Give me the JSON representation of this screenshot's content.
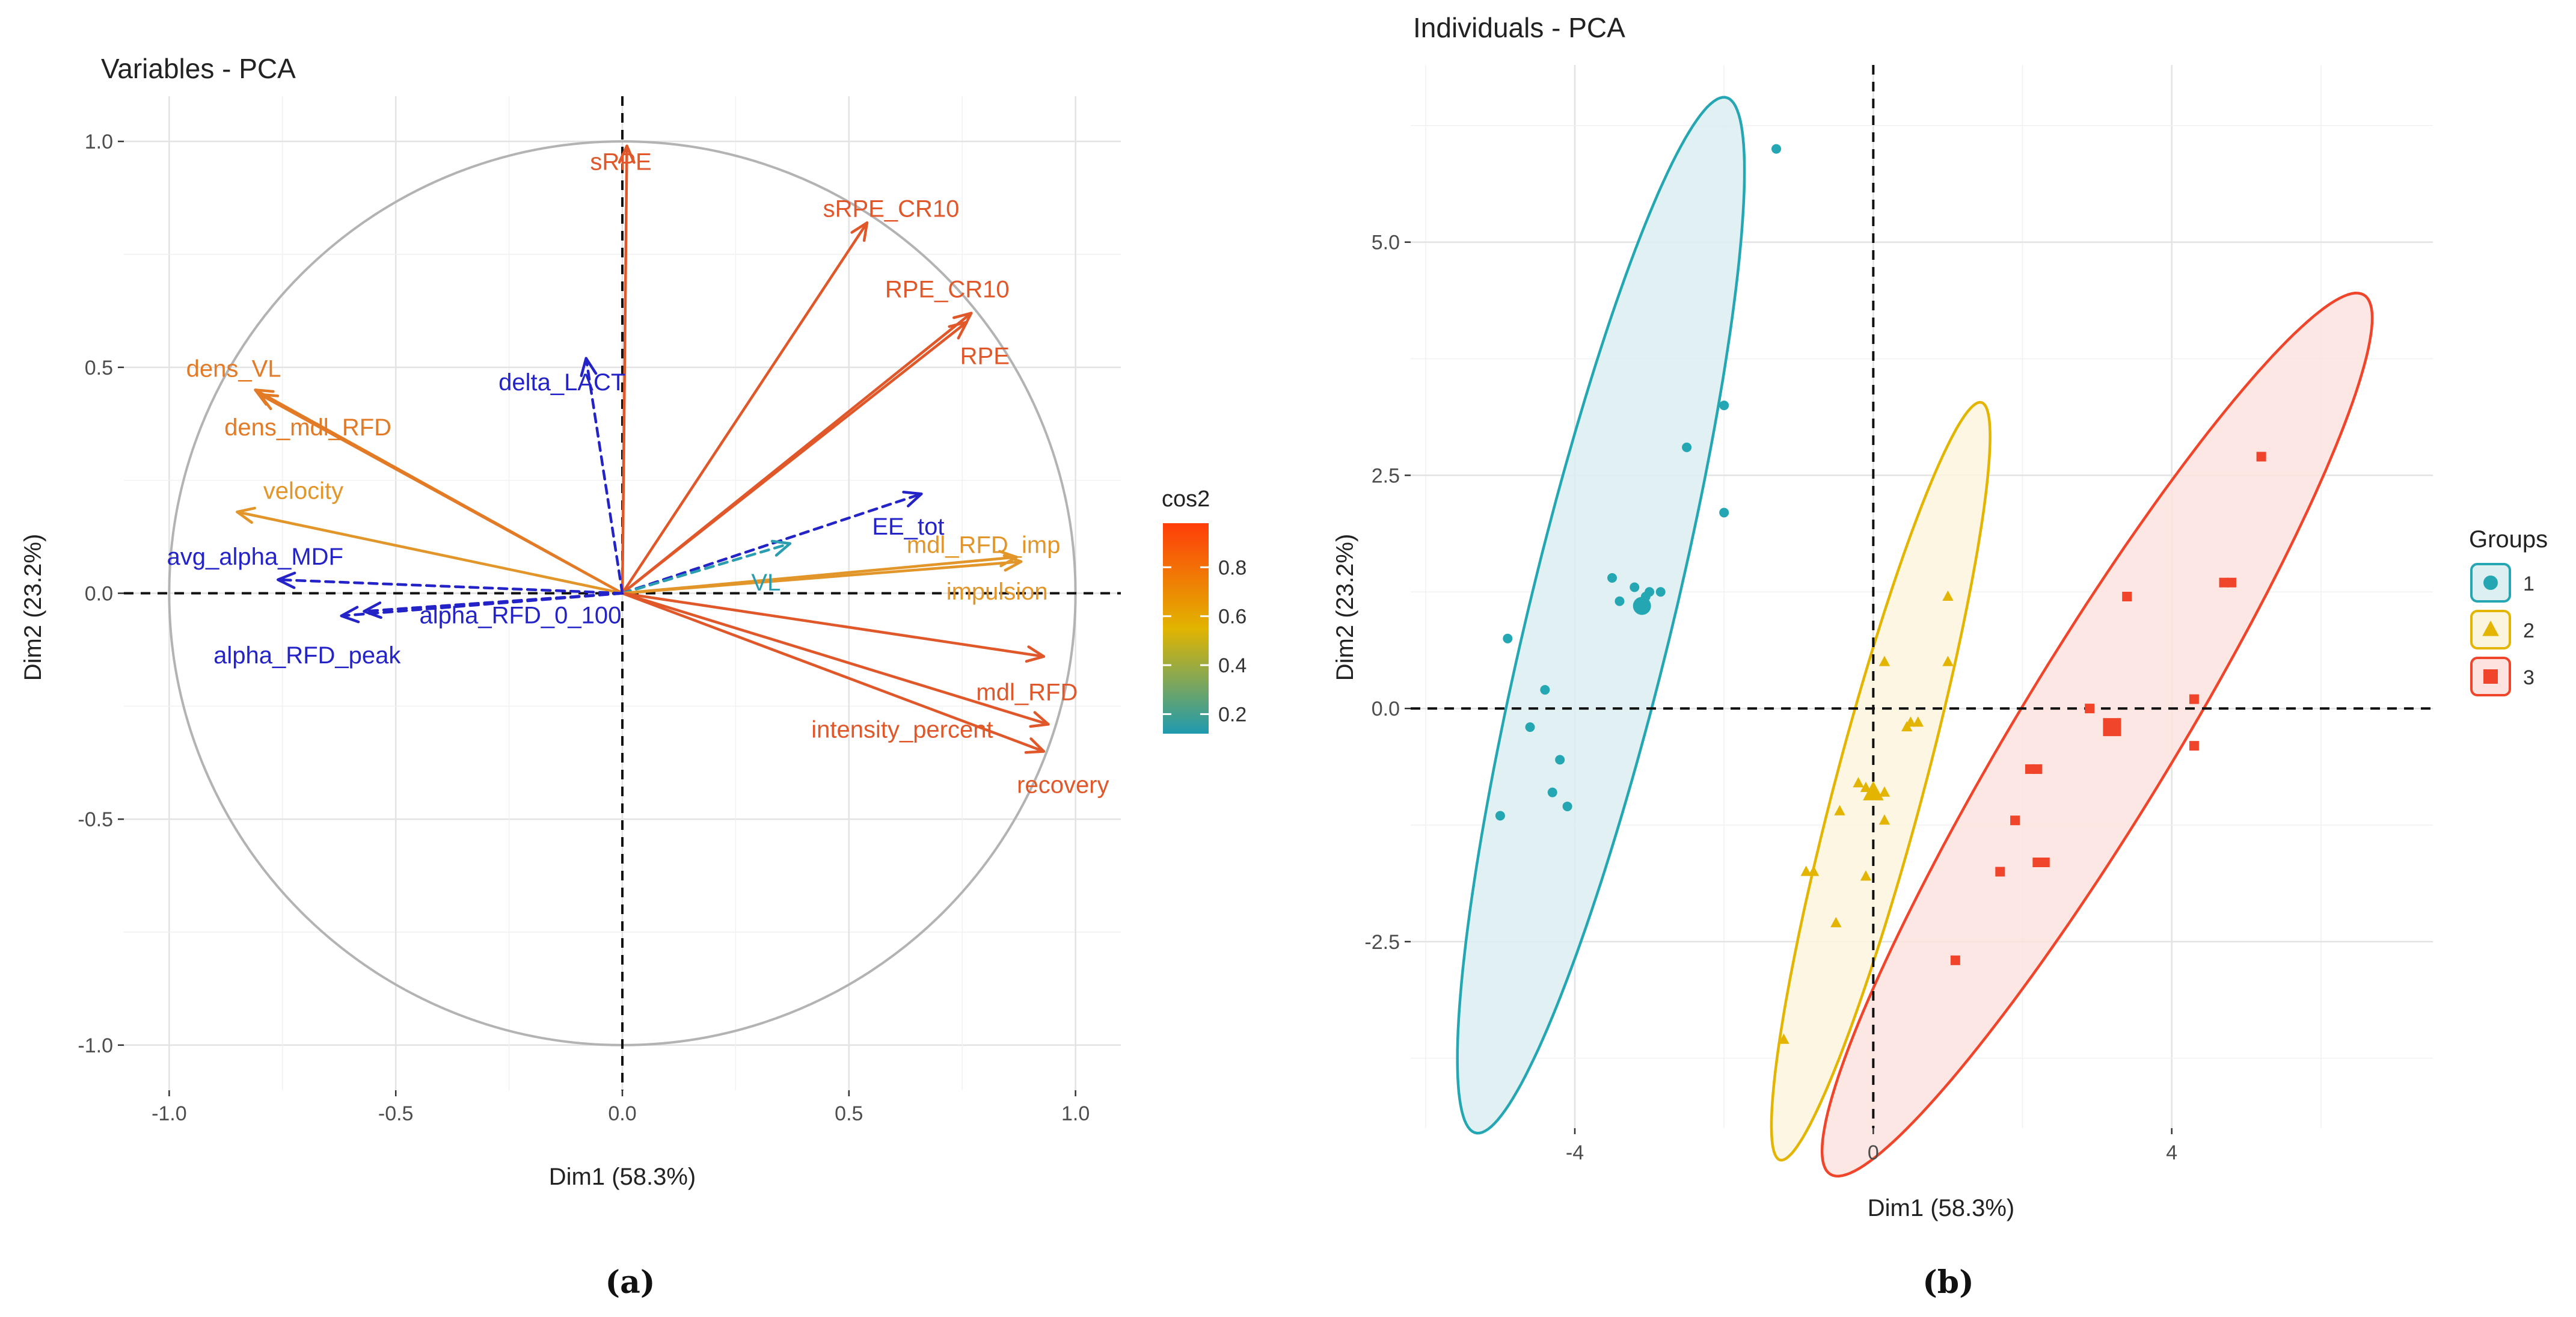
{
  "chart_data": [
    {
      "type": "pca-variables",
      "title": "Variables - PCA",
      "xlabel": "Dim1 (58.3%)",
      "ylabel": "Dim2 (23.2%)",
      "xlim": [
        -1.1,
        1.1
      ],
      "ylim": [
        -1.1,
        1.1
      ],
      "xticks": [
        -1.0,
        -0.5,
        0.0,
        0.5,
        1.0
      ],
      "yticks": [
        -1.0,
        -0.5,
        0.0,
        0.5,
        1.0
      ],
      "xtick_labels": [
        "-1.0",
        "-0.5",
        "0.0",
        "0.5",
        "1.0"
      ],
      "ytick_labels": [
        "-1.0",
        "-0.5",
        "0.0",
        "0.5",
        "1.0"
      ],
      "grid": true,
      "correlation_circle": true,
      "caption": "(a)",
      "legend": {
        "title": "cos2",
        "placement": "right",
        "ticks": [
          0.2,
          0.4,
          0.6,
          0.8
        ],
        "tick_labels": [
          "0.2",
          "0.4",
          "0.6",
          "0.8"
        ],
        "range": [
          0.12,
          0.98
        ],
        "colors": [
          "#1F9AAF",
          "#E2B400",
          "#FF3D0A"
        ]
      },
      "variables": [
        {
          "name": "sRPE",
          "x": 0.01,
          "y": 0.99,
          "cos2": 0.98,
          "color": "#E0582A",
          "style": "solid"
        },
        {
          "name": "sRPE_CR10",
          "x": 0.54,
          "y": 0.82,
          "cos2": 0.96,
          "color": "#E0582A",
          "style": "solid"
        },
        {
          "name": "RPE_CR10",
          "x": 0.77,
          "y": 0.62,
          "cos2": 0.96,
          "color": "#E0582A",
          "style": "solid"
        },
        {
          "name": "RPE",
          "x": 0.76,
          "y": 0.6,
          "cos2": 0.95,
          "color": "#E0582A",
          "style": "solid"
        },
        {
          "name": "dens_VL",
          "x": -0.81,
          "y": 0.45,
          "cos2": 0.86,
          "color": "#E37A26",
          "style": "solid"
        },
        {
          "name": "dens_mdl_RFD",
          "x": -0.8,
          "y": 0.44,
          "cos2": 0.84,
          "color": "#E37A26",
          "style": "solid"
        },
        {
          "name": "velocity",
          "x": -0.85,
          "y": 0.18,
          "cos2": 0.75,
          "color": "#E2962A",
          "style": "solid"
        },
        {
          "name": "delta_LACT",
          "x": -0.08,
          "y": 0.52,
          "cos2": 0.28,
          "color": "#2323C8",
          "style": "dashed"
        },
        {
          "name": "EE_tot",
          "x": 0.66,
          "y": 0.22,
          "cos2": 0.48,
          "color": "#2323C8",
          "style": "dashed"
        },
        {
          "name": "VL",
          "x": 0.37,
          "y": 0.11,
          "cos2": 0.15,
          "color": "#2A9DB0",
          "style": "dashed"
        },
        {
          "name": "mdl_RFD_imp",
          "x": 0.87,
          "y": 0.08,
          "cos2": 0.77,
          "color": "#E2962A",
          "style": "solid"
        },
        {
          "name": "impulsion",
          "x": 0.88,
          "y": 0.07,
          "cos2": 0.78,
          "color": "#E2962A",
          "style": "solid"
        },
        {
          "name": "mdl_RFD",
          "x": 0.93,
          "y": -0.14,
          "cos2": 0.88,
          "color": "#E0582A",
          "style": "solid"
        },
        {
          "name": "intensity_percent",
          "x": 0.94,
          "y": -0.29,
          "cos2": 0.97,
          "color": "#E0582A",
          "style": "solid"
        },
        {
          "name": "recovery",
          "x": 0.93,
          "y": -0.35,
          "cos2": 0.98,
          "color": "#E0582A",
          "style": "solid"
        },
        {
          "name": "avg_alpha_MDF",
          "x": -0.76,
          "y": 0.03,
          "cos2": 0.58,
          "color": "#2323C8",
          "style": "dashed"
        },
        {
          "name": "alpha_RFD_0_100",
          "x": -0.57,
          "y": -0.04,
          "cos2": 0.32,
          "color": "#2323C8",
          "style": "dashed"
        },
        {
          "name": "alpha_RFD_peak",
          "x": -0.62,
          "y": -0.05,
          "cos2": 0.38,
          "color": "#2323C8",
          "style": "dashed"
        }
      ],
      "variable_labels": [
        "sRPE",
        "sRPE_CR10",
        "RPE_CR10",
        "RPE",
        "dens_VL",
        "dens_mdl_RFD",
        "velocity",
        "delta_LACT",
        "EE_tot",
        "VL",
        "mdl_RFD_imp",
        "impulsion",
        "mdl_RFD",
        "intensity_percent",
        "recovery",
        "avg_alpha_MDF",
        "alpha_RFD_0_100",
        "alpha_RFD_peak"
      ]
    },
    {
      "type": "pca-individuals",
      "title": "Individuals - PCA",
      "xlabel": "Dim1 (58.3%)",
      "ylabel": "Dim2 (23.2%)",
      "xlim": [
        -6.2,
        7.5
      ],
      "ylim": [
        -4.5,
        6.9
      ],
      "xticks": [
        -4,
        0,
        4
      ],
      "yticks": [
        -2.5,
        0.0,
        2.5,
        5.0
      ],
      "xtick_labels": [
        "-4",
        "0",
        "4"
      ],
      "ytick_labels": [
        "-2.5",
        "0.0",
        "2.5",
        "5.0"
      ],
      "grid": true,
      "caption": "(b)",
      "legend": {
        "title": "Groups",
        "placement": "right",
        "entries": [
          {
            "label": "1",
            "shape": "circle",
            "color": "#24A6B3"
          },
          {
            "label": "2",
            "shape": "triangle",
            "color": "#E3B400"
          },
          {
            "label": "3",
            "shape": "square",
            "color": "#F0452A"
          }
        ]
      },
      "groups": [
        {
          "label": "1",
          "shape": "circle",
          "color": "#24A6B3",
          "fill": "#DCEFF1",
          "centroid": [
            -3.1,
            1.1
          ],
          "ellipse": {
            "center": [
              -3.65,
              1.0
            ],
            "semi_major": 5.8,
            "semi_minor": 0.95,
            "angle_deg": 73
          },
          "points": [
            [
              -1.3,
              6.0
            ],
            [
              -2.0,
              3.25
            ],
            [
              -2.5,
              2.8
            ],
            [
              -2.0,
              2.1
            ],
            [
              -3.5,
              1.4
            ],
            [
              -3.0,
              1.25
            ],
            [
              -2.85,
              1.25
            ],
            [
              -3.2,
              1.3
            ],
            [
              -3.05,
              1.2
            ],
            [
              -3.4,
              1.15
            ],
            [
              -4.9,
              0.75
            ],
            [
              -4.4,
              0.2
            ],
            [
              -4.6,
              -0.2
            ],
            [
              -4.2,
              -0.55
            ],
            [
              -4.3,
              -0.9
            ],
            [
              -4.1,
              -1.05
            ],
            [
              -5.0,
              -1.15
            ]
          ]
        },
        {
          "label": "2",
          "shape": "triangle",
          "color": "#E3B400",
          "fill": "#FCF5DE",
          "centroid": [
            0.0,
            -0.9
          ],
          "ellipse": {
            "center": [
              0.1,
              -0.78
            ],
            "semi_major": 4.28,
            "semi_minor": 0.58,
            "angle_deg": 71.5
          },
          "points": [
            [
              1.0,
              1.2
            ],
            [
              1.0,
              0.5
            ],
            [
              0.15,
              0.5
            ],
            [
              0.5,
              -0.15
            ],
            [
              0.6,
              -0.15
            ],
            [
              0.45,
              -0.2
            ],
            [
              -0.2,
              -0.8
            ],
            [
              0.15,
              -0.9
            ],
            [
              -0.1,
              -0.85
            ],
            [
              -0.45,
              -1.1
            ],
            [
              0.15,
              -1.2
            ],
            [
              -0.8,
              -1.75
            ],
            [
              -0.9,
              -1.75
            ],
            [
              -0.1,
              -1.8
            ],
            [
              -0.5,
              -2.3
            ],
            [
              -1.2,
              -3.55
            ]
          ]
        },
        {
          "label": "3",
          "shape": "square",
          "color": "#F0452A",
          "fill": "#FDE3DF",
          "centroid": [
            3.2,
            -0.2
          ],
          "ellipse": {
            "center": [
              3.0,
              -0.28
            ],
            "semi_major": 5.92,
            "semi_minor": 0.98,
            "angle_deg": 52.5
          },
          "points": [
            [
              5.2,
              2.7
            ],
            [
              3.4,
              1.2
            ],
            [
              4.8,
              1.35
            ],
            [
              4.7,
              1.35
            ],
            [
              4.3,
              0.1
            ],
            [
              2.9,
              0.0
            ],
            [
              4.3,
              -0.4
            ],
            [
              2.1,
              -0.65
            ],
            [
              2.2,
              -0.65
            ],
            [
              1.9,
              -1.2
            ],
            [
              2.2,
              -1.65
            ],
            [
              2.3,
              -1.65
            ],
            [
              1.7,
              -1.75
            ],
            [
              1.1,
              -2.7
            ]
          ]
        }
      ],
      "group_labels": [
        "1",
        "2",
        "3"
      ]
    }
  ]
}
